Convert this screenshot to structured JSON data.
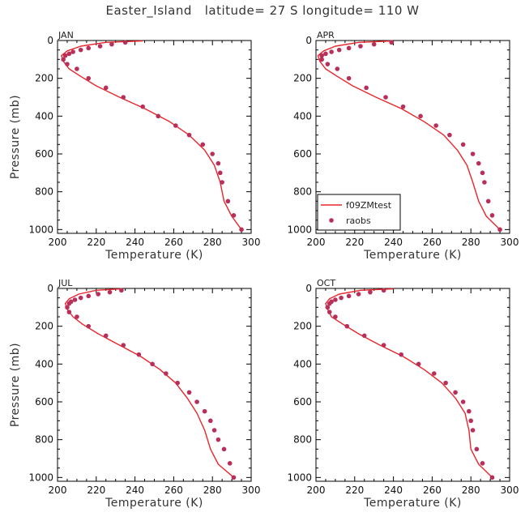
{
  "title": "Easter_Island   latitude= 27 S longitude= 110 W",
  "colors": {
    "model_line": "#e8262b",
    "obs_marker": "#b8305a",
    "axis": "#000000"
  },
  "chart_data": [
    {
      "type": "line",
      "panel_label": "JAN",
      "xlabel": "Temperature (K)",
      "ylabel": "Pressure (mb)",
      "xlim": [
        200,
        300
      ],
      "ylim": [
        1020,
        0
      ],
      "xticks": [
        200,
        220,
        240,
        260,
        280,
        300
      ],
      "yticks": [
        0,
        200,
        400,
        600,
        800,
        1000
      ],
      "series": [
        {
          "name": "f09ZMtest",
          "style": "line",
          "x": [
            244,
            225,
            212,
            205,
            202,
            203,
            206,
            212,
            220,
            232,
            245,
            258,
            268,
            276,
            281,
            284,
            286,
            290,
            295
          ],
          "y": [
            2,
            10,
            30,
            55,
            80,
            110,
            150,
            190,
            240,
            300,
            360,
            430,
            500,
            580,
            660,
            750,
            850,
            930,
            1000
          ]
        },
        {
          "name": "raobs",
          "style": "marker",
          "x": [
            235,
            228,
            222,
            216,
            212,
            208,
            206,
            204,
            203,
            205,
            210,
            216,
            225,
            234,
            244,
            252,
            261,
            268,
            275,
            280,
            283,
            284,
            285,
            288,
            291,
            295
          ],
          "y": [
            10,
            20,
            30,
            40,
            50,
            60,
            70,
            80,
            100,
            125,
            150,
            200,
            250,
            300,
            350,
            400,
            450,
            500,
            550,
            600,
            650,
            700,
            750,
            850,
            925,
            1000
          ]
        }
      ]
    },
    {
      "type": "line",
      "panel_label": "APR",
      "xlabel": "Temperature (K)",
      "ylabel": "",
      "xlim": [
        200,
        300
      ],
      "ylim": [
        1020,
        0
      ],
      "xticks": [
        200,
        220,
        240,
        260,
        280,
        300
      ],
      "yticks": [
        0,
        200,
        400,
        600,
        800,
        1000
      ],
      "legend": {
        "placement": "lower-left",
        "entries": [
          "f09ZMtest",
          "raobs"
        ]
      },
      "series": [
        {
          "name": "f09ZMtest",
          "style": "line",
          "x": [
            240,
            222,
            210,
            204,
            201,
            202,
            205,
            211,
            219,
            231,
            244,
            256,
            266,
            273,
            278,
            281,
            284,
            288,
            295
          ],
          "y": [
            2,
            10,
            30,
            55,
            80,
            110,
            150,
            190,
            240,
            300,
            360,
            430,
            500,
            580,
            660,
            750,
            850,
            930,
            1000
          ]
        },
        {
          "name": "raobs",
          "style": "marker",
          "x": [
            239,
            230,
            223,
            217,
            212,
            208,
            205,
            203,
            203,
            206,
            211,
            217,
            226,
            236,
            245,
            254,
            262,
            269,
            276,
            281,
            284,
            286,
            287,
            289,
            291,
            295
          ],
          "y": [
            10,
            20,
            30,
            40,
            50,
            60,
            70,
            80,
            100,
            125,
            150,
            200,
            250,
            300,
            350,
            400,
            450,
            500,
            550,
            600,
            650,
            700,
            750,
            850,
            925,
            1000
          ]
        }
      ]
    },
    {
      "type": "line",
      "panel_label": "JUL",
      "xlabel": "Temperature (K)",
      "ylabel": "Pressure (mb)",
      "xlim": [
        200,
        300
      ],
      "ylim": [
        1020,
        0
      ],
      "xticks": [
        200,
        220,
        240,
        260,
        280,
        300
      ],
      "yticks": [
        0,
        200,
        400,
        600,
        800,
        1000
      ],
      "series": [
        {
          "name": "f09ZMtest",
          "style": "line",
          "x": [
            233,
            220,
            211,
            206,
            204,
            205,
            208,
            213,
            221,
            232,
            243,
            253,
            261,
            267,
            272,
            276,
            279,
            283,
            291
          ],
          "y": [
            2,
            10,
            30,
            55,
            80,
            110,
            150,
            190,
            240,
            300,
            360,
            430,
            500,
            580,
            660,
            750,
            850,
            930,
            1000
          ]
        },
        {
          "name": "raobs",
          "style": "marker",
          "x": [
            233,
            227,
            221,
            216,
            212,
            209,
            207,
            206,
            205,
            206,
            210,
            216,
            225,
            234,
            242,
            249,
            256,
            262,
            268,
            272,
            276,
            279,
            281,
            283,
            286,
            289,
            291
          ],
          "y": [
            10,
            20,
            30,
            40,
            50,
            60,
            70,
            80,
            100,
            125,
            150,
            200,
            250,
            300,
            350,
            400,
            450,
            500,
            550,
            600,
            650,
            700,
            750,
            800,
            850,
            925,
            1000
          ]
        }
      ]
    },
    {
      "type": "line",
      "panel_label": "OCT",
      "xlabel": "Temperature (K)",
      "ylabel": "",
      "xlim": [
        200,
        300
      ],
      "ylim": [
        1020,
        0
      ],
      "xticks": [
        200,
        220,
        240,
        260,
        280,
        300
      ],
      "yticks": [
        0,
        200,
        400,
        600,
        800,
        1000
      ],
      "series": [
        {
          "name": "f09ZMtest",
          "style": "line",
          "x": [
            240,
            223,
            212,
            207,
            205,
            206,
            208,
            214,
            222,
            233,
            245,
            256,
            265,
            272,
            277,
            279,
            280,
            284,
            291
          ],
          "y": [
            2,
            10,
            30,
            55,
            80,
            110,
            150,
            190,
            240,
            300,
            360,
            430,
            500,
            580,
            660,
            750,
            850,
            930,
            1000
          ]
        },
        {
          "name": "raobs",
          "style": "marker",
          "x": [
            235,
            228,
            222,
            217,
            213,
            210,
            208,
            207,
            206,
            207,
            210,
            216,
            225,
            235,
            244,
            253,
            261,
            267,
            272,
            276,
            279,
            280,
            281,
            283,
            286,
            291
          ],
          "y": [
            10,
            20,
            30,
            40,
            50,
            60,
            70,
            80,
            100,
            125,
            150,
            200,
            250,
            300,
            350,
            400,
            450,
            500,
            550,
            600,
            650,
            700,
            750,
            850,
            925,
            1000
          ]
        }
      ]
    }
  ]
}
